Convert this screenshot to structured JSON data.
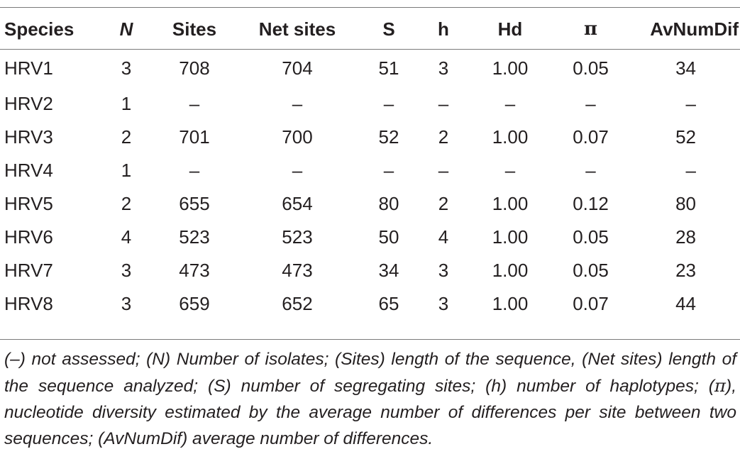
{
  "table": {
    "headers": {
      "species": "Species",
      "n": "N",
      "sites": "Sites",
      "net_sites": "Net sites",
      "s": "S",
      "h": "h",
      "hd": "Hd",
      "pi": "π",
      "avnumdif": "AvNumDif"
    },
    "rows": [
      {
        "species": "HRV1",
        "n": "3",
        "sites": "708",
        "net_sites": "704",
        "s": "51",
        "h": "3",
        "hd": "1.00",
        "pi": "0.05",
        "avnumdif": "34"
      },
      {
        "species": "HRV2",
        "n": "1",
        "sites": "–",
        "net_sites": "–",
        "s": "–",
        "h": "–",
        "hd": "–",
        "pi": "–",
        "avnumdif": "–"
      },
      {
        "species": "HRV3",
        "n": "2",
        "sites": "701",
        "net_sites": "700",
        "s": "52",
        "h": "2",
        "hd": "1.00",
        "pi": "0.07",
        "avnumdif": "52"
      },
      {
        "species": "HRV4",
        "n": "1",
        "sites": "–",
        "net_sites": "–",
        "s": "–",
        "h": "–",
        "hd": "–",
        "pi": "–",
        "avnumdif": "–"
      },
      {
        "species": "HRV5",
        "n": "2",
        "sites": "655",
        "net_sites": "654",
        "s": "80",
        "h": "2",
        "hd": "1.00",
        "pi": "0.12",
        "avnumdif": "80"
      },
      {
        "species": "HRV6",
        "n": "4",
        "sites": "523",
        "net_sites": "523",
        "s": "50",
        "h": "4",
        "hd": "1.00",
        "pi": "0.05",
        "avnumdif": "28"
      },
      {
        "species": "HRV7",
        "n": "3",
        "sites": "473",
        "net_sites": "473",
        "s": "34",
        "h": "3",
        "hd": "1.00",
        "pi": "0.05",
        "avnumdif": "23"
      },
      {
        "species": "HRV8",
        "n": "3",
        "sites": "659",
        "net_sites": "652",
        "s": "65",
        "h": "3",
        "hd": "1.00",
        "pi": "0.07",
        "avnumdif": "44"
      }
    ]
  },
  "footnote": {
    "part1": "(–) not assessed; (N) Number of isolates; (Sites) length of the sequence, (Net sites) length of the sequence analyzed; (S) number of segregating sites; (h) number of haplotypes; (",
    "pi_symbol": "π",
    "part2": "), nucleotide diversity estimated by the average number of differences per site between two sequences; (AvNumDif) average number of differences."
  }
}
